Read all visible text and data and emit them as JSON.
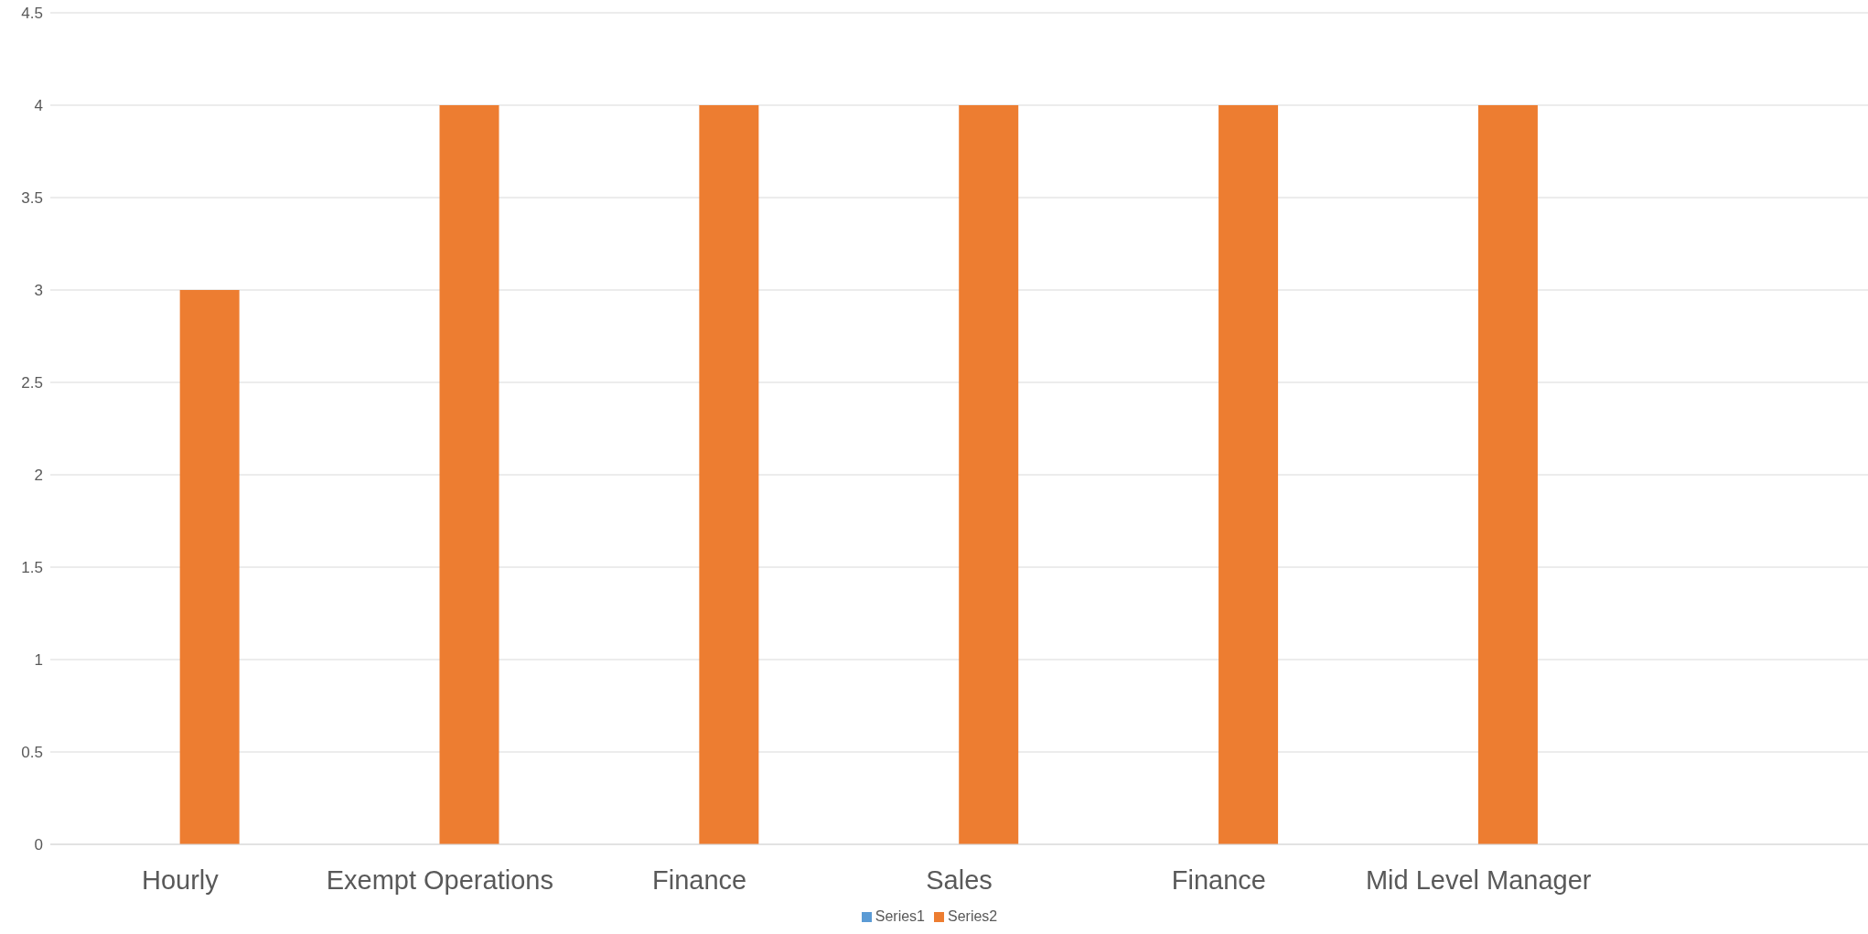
{
  "chart_data": {
    "type": "bar",
    "categories": [
      "Hourly",
      "Exempt Operations",
      "Finance",
      "Sales",
      "Finance",
      "Mid Level Manager",
      null
    ],
    "series": [
      {
        "name": "Series1",
        "color": "#5b9bd5",
        "values": [
          null,
          null,
          null,
          null,
          null,
          null,
          null
        ]
      },
      {
        "name": "Series2",
        "color": "#ed7d31",
        "values": [
          3,
          4,
          4,
          4,
          4,
          4,
          null
        ]
      }
    ],
    "ylim": [
      0,
      4.5
    ],
    "yticks": [
      0,
      0.5,
      1,
      1.5,
      2,
      2.5,
      3,
      3.5,
      4,
      4.5
    ],
    "grid": "y",
    "legend": "bottom"
  }
}
